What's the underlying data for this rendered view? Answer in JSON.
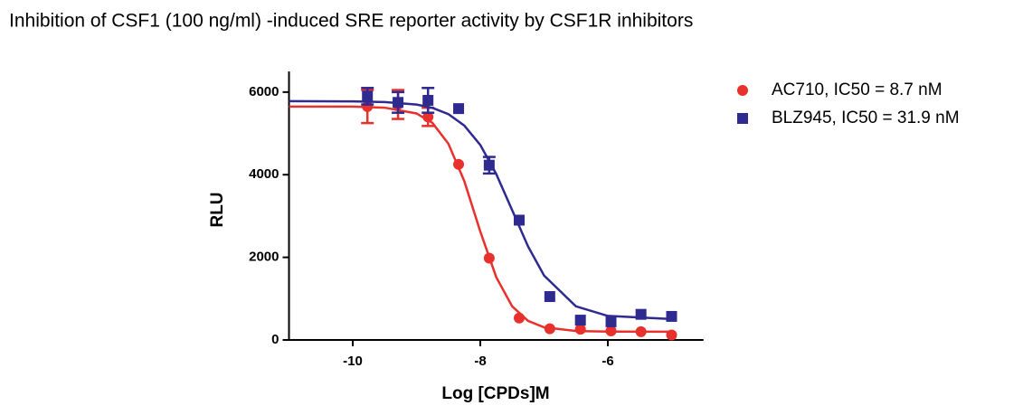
{
  "chart_data": {
    "type": "dose-response",
    "title": "Inhibition of CSF1 (100 ng/ml) -induced SRE reporter activity by CSF1R inhibitors",
    "x_label": "Log [CPDs]M",
    "y_label": "RLU",
    "xlim": [
      -11,
      -4.5
    ],
    "ylim": [
      0,
      6500
    ],
    "xticks": [
      -10,
      -8,
      -6
    ],
    "yticks": [
      0,
      2000,
      4000,
      6000
    ],
    "legend": "right",
    "series": [
      {
        "name": "AC710, IC50  = 8.7 nM",
        "color": "#e8302c",
        "marker": "circle",
        "x": [
          -9.77,
          -9.29,
          -8.82,
          -8.34,
          -7.86,
          -7.39,
          -6.91,
          -6.43,
          -5.95,
          -5.48,
          -5.0
        ],
        "values": [
          5650,
          5700,
          5400,
          4250,
          1980,
          530,
          270,
          260,
          220,
          200,
          120
        ],
        "errors": [
          400,
          350,
          220,
          null,
          null,
          null,
          null,
          null,
          null,
          null,
          null
        ],
        "curve": {
          "x": [
            -11,
            -10,
            -9.5,
            -9,
            -8.75,
            -8.5,
            -8.25,
            -8,
            -7.75,
            -7.5,
            -7.25,
            -7,
            -6.5,
            -6,
            -5
          ],
          "values": [
            5650,
            5650,
            5623,
            5483,
            5253,
            4749,
            3841,
            2625,
            1519,
            814,
            462,
            307,
            217,
            202,
            200
          ]
        }
      },
      {
        "name": "BLZ945, IC50 = 31.9 nM",
        "color": "#2e2a8f",
        "marker": "square",
        "x": [
          -9.77,
          -9.29,
          -8.82,
          -8.34,
          -7.86,
          -7.39,
          -6.91,
          -6.43,
          -5.95,
          -5.48,
          -5.0
        ],
        "values": [
          5900,
          5750,
          5800,
          5600,
          4230,
          2900,
          1050,
          480,
          440,
          620,
          570
        ],
        "errors": [
          200,
          250,
          300,
          null,
          200,
          null,
          null,
          null,
          null,
          null,
          null
        ],
        "curve": {
          "x": [
            -11,
            -10,
            -9.5,
            -9,
            -8.75,
            -8.5,
            -8.25,
            -8,
            -7.75,
            -7.5,
            -7.25,
            -7,
            -6.5,
            -6,
            -5
          ],
          "values": [
            5780,
            5775,
            5759,
            5698,
            5618,
            5467,
            5189,
            4720,
            4017,
            3140,
            2260,
            1560,
            814,
            582,
            505
          ]
        }
      }
    ]
  }
}
